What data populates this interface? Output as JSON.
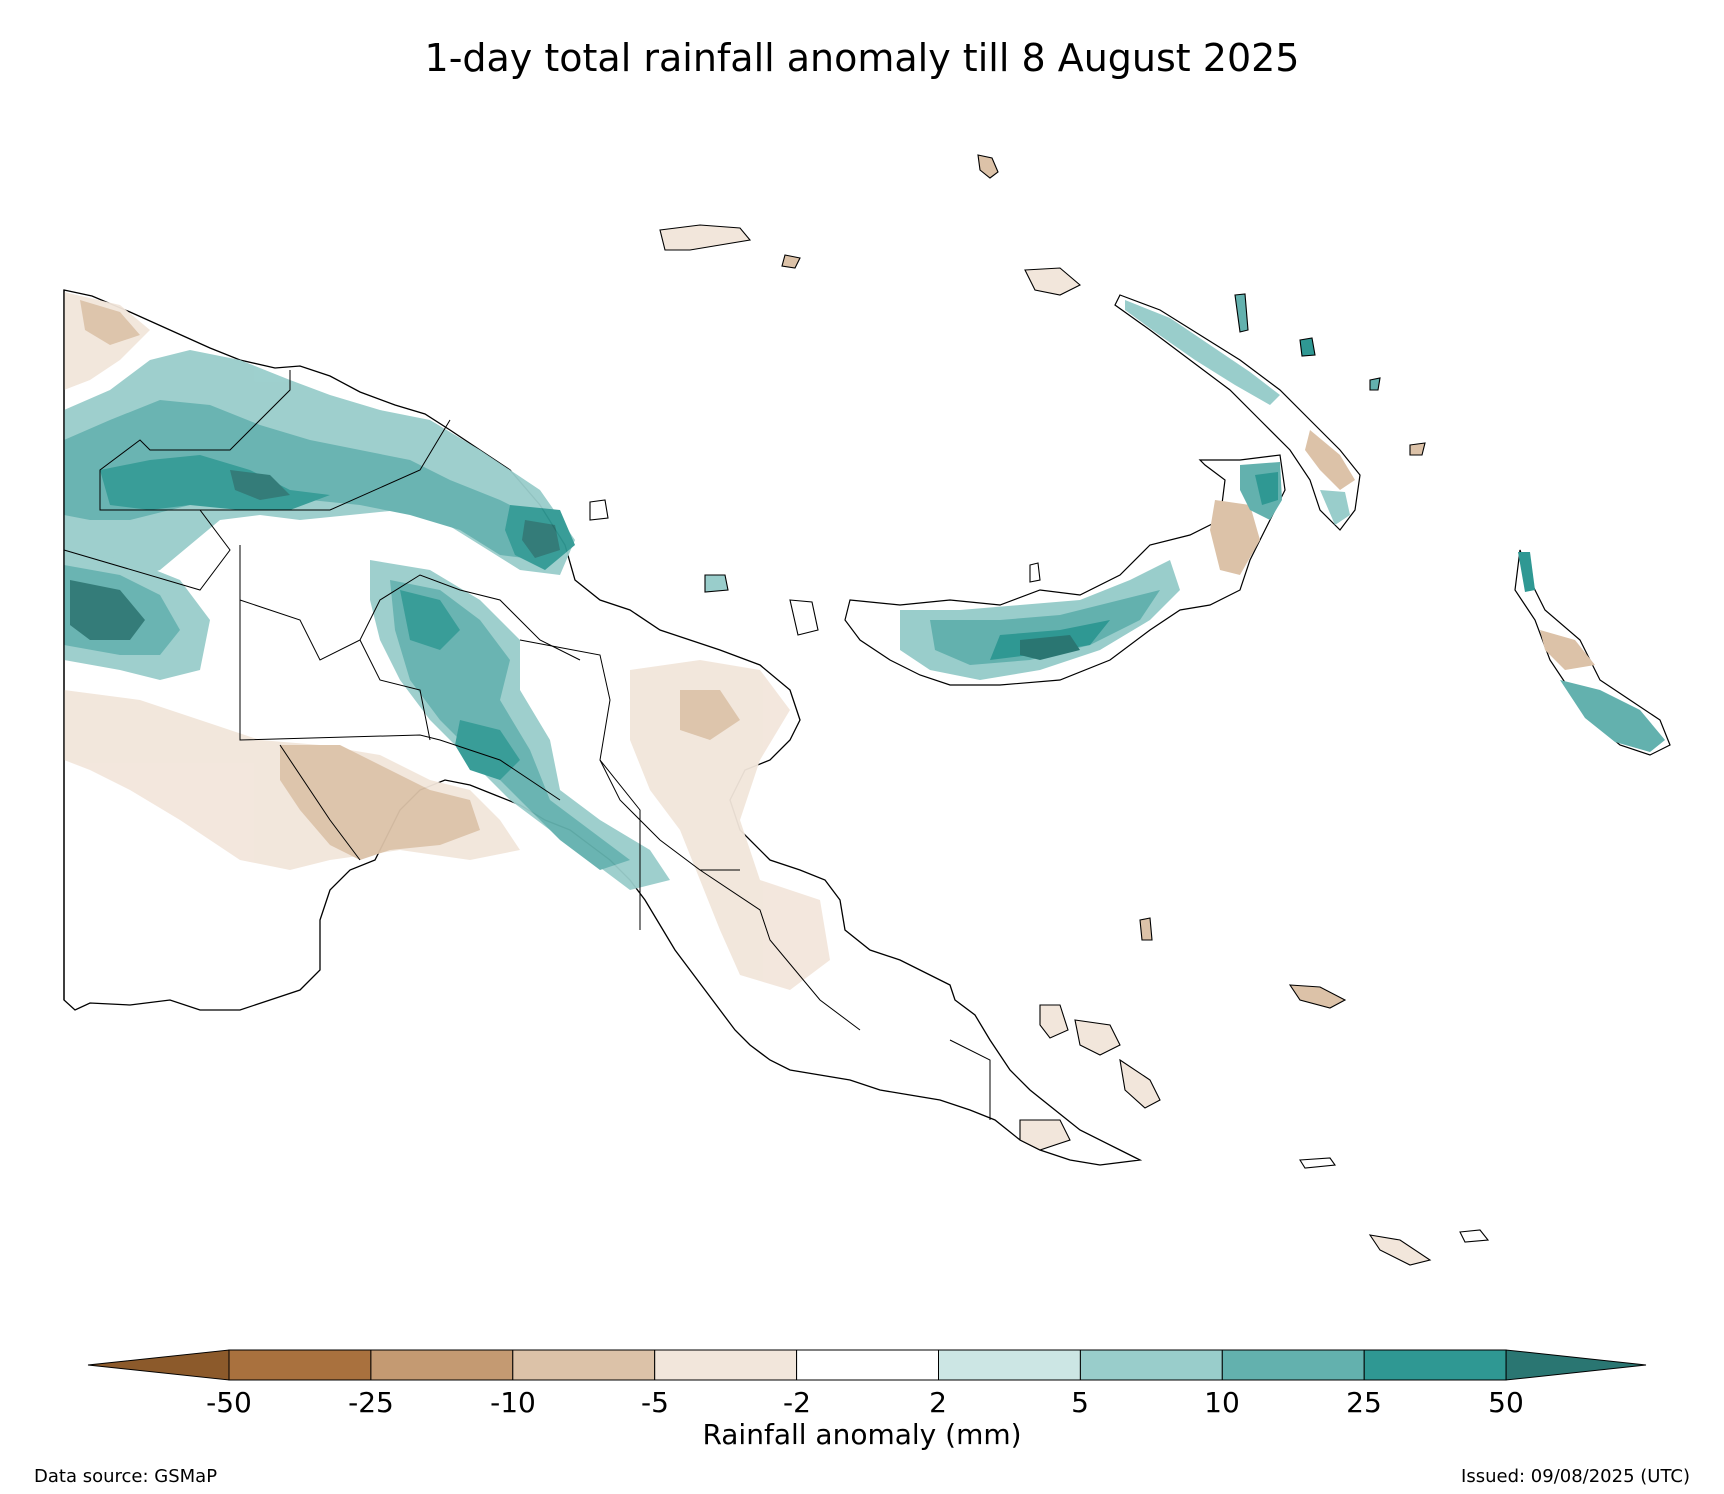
{
  "title": "1-day total rainfall anomaly till 8 August 2025",
  "legend": {
    "label": "Rainfall anomaly (mm)",
    "ticks": [
      "-50",
      "-25",
      "-10",
      "-5",
      "-2",
      "2",
      "5",
      "10",
      "25",
      "50"
    ],
    "colors": {
      "below_-50": "#8c5a2b",
      "-50_-25": "#a9713e",
      "-25_-10": "#c49a72",
      "-10_-5": "#dcc2a8",
      "-5_-2": "#f2e6db",
      "-2_2": "#ffffff",
      "2_5": "#cce6e4",
      "5_10": "#99cdcb",
      "10_25": "#63b1ae",
      "25_50": "#2f9893",
      "above_50": "#2a7672"
    }
  },
  "footer": {
    "source": "Data source: GSMaP",
    "issued": "Issued: 09/08/2025 (UTC)"
  }
}
